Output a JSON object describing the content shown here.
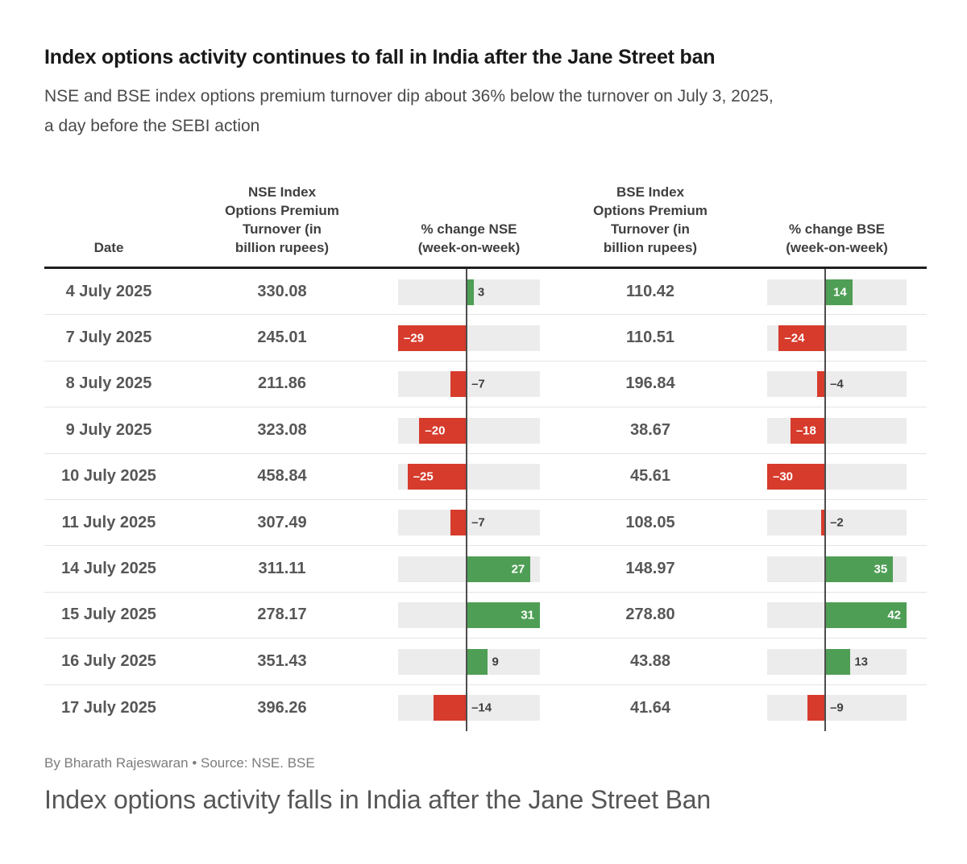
{
  "header": {
    "title": "Index options activity continues to fall in India after the Jane Street ban",
    "subtitle": "NSE and BSE index options premium turnover dip about 36% below the turnover on July 3, 2025,\na day before the SEBI action"
  },
  "table": {
    "col_headers": {
      "date": "Date",
      "nse_turnover": "NSE Index\nOptions Premium\nTurnover (in\nbillion rupees)",
      "nse_change": "% change NSE\n(week-on-week)",
      "bse_turnover": "BSE Index\nOptions Premium\nTurnover (in\nbillion rupees)",
      "bse_change": "% change BSE\n(week-on-week)"
    },
    "rows": [
      {
        "date": "4 July 2025",
        "nse_turnover": "330.08",
        "nse_change": 3,
        "nse_label_inside": false,
        "bse_turnover": "110.42",
        "bse_change": 14,
        "bse_label_inside": true
      },
      {
        "date": "7 July 2025",
        "nse_turnover": "245.01",
        "nse_change": -29,
        "nse_label_inside": true,
        "bse_turnover": "110.51",
        "bse_change": -24,
        "bse_label_inside": true
      },
      {
        "date": "8 July 2025",
        "nse_turnover": "211.86",
        "nse_change": -7,
        "nse_label_inside": false,
        "bse_turnover": "196.84",
        "bse_change": -4,
        "bse_label_inside": false
      },
      {
        "date": "9 July 2025",
        "nse_turnover": "323.08",
        "nse_change": -20,
        "nse_label_inside": true,
        "bse_turnover": "38.67",
        "bse_change": -18,
        "bse_label_inside": true
      },
      {
        "date": "10 July 2025",
        "nse_turnover": "458.84",
        "nse_change": -25,
        "nse_label_inside": true,
        "bse_turnover": "45.61",
        "bse_change": -30,
        "bse_label_inside": true
      },
      {
        "date": "11 July 2025",
        "nse_turnover": "307.49",
        "nse_change": -7,
        "nse_label_inside": false,
        "bse_turnover": "108.05",
        "bse_change": -2,
        "bse_label_inside": false
      },
      {
        "date": "14 July 2025",
        "nse_turnover": "311.11",
        "nse_change": 27,
        "nse_label_inside": true,
        "bse_turnover": "148.97",
        "bse_change": 35,
        "bse_label_inside": true
      },
      {
        "date": "15 July 2025",
        "nse_turnover": "278.17",
        "nse_change": 31,
        "nse_label_inside": true,
        "bse_turnover": "278.80",
        "bse_change": 42,
        "bse_label_inside": true
      },
      {
        "date": "16 July 2025",
        "nse_turnover": "351.43",
        "nse_change": 9,
        "nse_label_inside": false,
        "bse_turnover": "43.88",
        "bse_change": 13,
        "bse_label_inside": false
      },
      {
        "date": "17 July 2025",
        "nse_turnover": "396.26",
        "nse_change": -14,
        "nse_label_inside": false,
        "bse_turnover": "41.64",
        "bse_change": -9,
        "bse_label_inside": false
      }
    ]
  },
  "chart_data": {
    "type": "table",
    "title": "Index options activity continues to fall in India after the Jane Street ban",
    "subtitle": "NSE and BSE index options premium turnover dip about 36% below the turnover on July 3, 2025, a day before the SEBI action",
    "columns": [
      "Date",
      "NSE Index Options Premium Turnover (in billion rupees)",
      "% change NSE (week-on-week)",
      "BSE Index Options Premium Turnover (in billion rupees)",
      "% change BSE (week-on-week)"
    ],
    "categories": [
      "4 July 2025",
      "7 July 2025",
      "8 July 2025",
      "9 July 2025",
      "10 July 2025",
      "11 July 2025",
      "14 July 2025",
      "15 July 2025",
      "16 July 2025",
      "17 July 2025"
    ],
    "series": [
      {
        "name": "NSE Index Options Premium Turnover (in billion rupees)",
        "values": [
          330.08,
          245.01,
          211.86,
          323.08,
          458.84,
          307.49,
          311.11,
          278.17,
          351.43,
          396.26
        ]
      },
      {
        "name": "% change NSE (week-on-week)",
        "type": "bar",
        "values": [
          3,
          -29,
          -7,
          -20,
          -25,
          -7,
          27,
          31,
          9,
          -14
        ],
        "axis_range": [
          -29,
          31
        ]
      },
      {
        "name": "BSE Index Options Premium Turnover (in billion rupees)",
        "values": [
          110.42,
          110.51,
          196.84,
          38.67,
          45.61,
          108.05,
          148.97,
          278.8,
          43.88,
          41.64
        ]
      },
      {
        "name": "% change BSE (week-on-week)",
        "type": "bar",
        "values": [
          14,
          -24,
          -4,
          -18,
          -30,
          -2,
          35,
          42,
          13,
          -9
        ],
        "axis_range": [
          -30,
          42
        ]
      }
    ]
  },
  "scales": {
    "nse": {
      "min": -29,
      "max": 31
    },
    "bse": {
      "min": -30,
      "max": 42
    }
  },
  "colors": {
    "positive": "#4f9e55",
    "negative": "#d63b2c",
    "track": "#ececec",
    "zero_line": "#4d4d4d"
  },
  "footer": {
    "byline": "By Bharath Rajeswaran • Source: NSE. BSE",
    "caption": "Index options activity falls in India after the Jane Street Ban"
  }
}
